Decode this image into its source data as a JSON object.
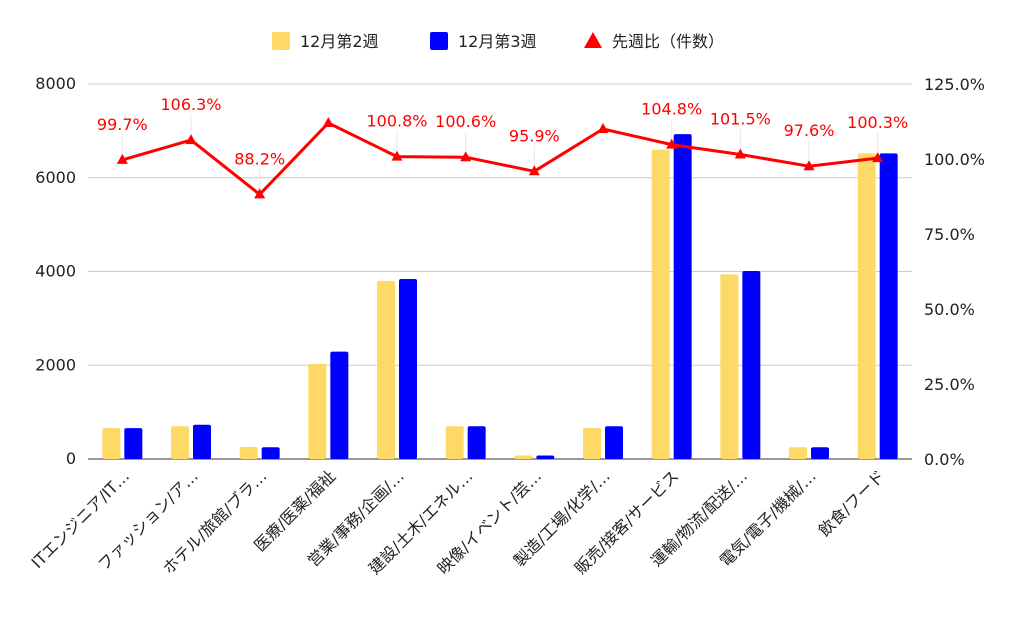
{
  "chart_data": {
    "type": "bar",
    "categories": [
      "ITエンジニア/IT…",
      "ファッション/ア…",
      "ホテル/旅館/ブラ…",
      "医療/医薬/福祉",
      "営業/事務/企画/…",
      "建設/土木/エネル…",
      "映像/イベント/芸…",
      "製造/工場/化学/…",
      "販売/接客/サービス",
      "運輸/物流/配送/…",
      "電気/電子/機械/…",
      "飲食/フード"
    ],
    "series": [
      {
        "name": "12月第2週",
        "color": "#ffd966",
        "values": [
          660,
          700,
          255,
          2030,
          3800,
          700,
          75,
          660,
          6600,
          3940,
          250,
          6520
        ]
      },
      {
        "name": "12月第3週",
        "color": "#0000ff",
        "values": [
          660,
          730,
          250,
          2290,
          3840,
          700,
          75,
          700,
          6930,
          4010,
          250,
          6520
        ]
      }
    ],
    "line_series": {
      "name": "先週比（件数）",
      "color": "#ff0000",
      "values": [
        99.7,
        106.3,
        88.2,
        112.0,
        100.8,
        100.6,
        95.9,
        110.0,
        104.8,
        101.5,
        97.6,
        100.3
      ],
      "labels": [
        "99.7%",
        "106.3%",
        "88.2%",
        "",
        "100.8%",
        "100.6%",
        "95.9%",
        "",
        "104.8%",
        "101.5%",
        "97.6%",
        "100.3%"
      ]
    },
    "y_left": {
      "min": 0,
      "max": 8000,
      "ticks": [
        "0",
        "2000",
        "4000",
        "6000",
        "8000"
      ]
    },
    "y_right": {
      "min": 0,
      "max": 125,
      "ticks": [
        "0.0%",
        "25.0%",
        "50.0%",
        "75.0%",
        "100.0%",
        "125.0%"
      ]
    },
    "grid": true,
    "legend_position": "top"
  }
}
